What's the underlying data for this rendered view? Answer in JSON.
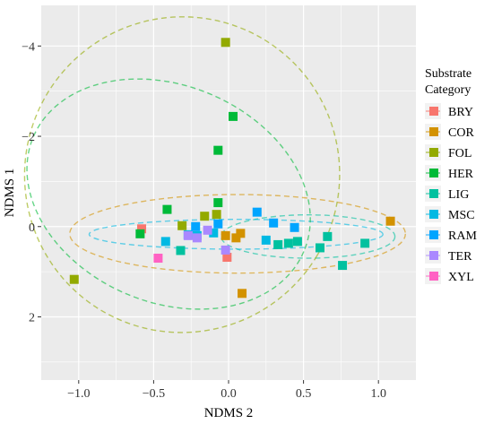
{
  "chart_data": {
    "type": "scatter",
    "xlabel": "NDMS 2",
    "ylabel": "NDMS 1",
    "xlim": [
      -1.25,
      1.25
    ],
    "ylim": [
      3.4,
      -4.9
    ],
    "y_axis_reversed": true,
    "x_ticks": [
      -1.0,
      -0.5,
      0.0,
      0.5,
      1.0
    ],
    "x_tick_labels": [
      "−1.0",
      "−0.5",
      "0.0",
      "0.5",
      "1.0"
    ],
    "y_ticks": [
      -4,
      -2,
      0,
      2
    ],
    "y_tick_labels": [
      "−4",
      "−2",
      "0",
      "2"
    ],
    "grid": true,
    "background": "#ebebeb",
    "legend": {
      "title": "Substrate\nCategory",
      "title_lines": [
        "Substrate",
        "Category"
      ],
      "position": "right"
    },
    "series": [
      {
        "name": "BRY",
        "color": "#F8766D",
        "points": [
          [
            -0.58,
            0.05
          ],
          [
            -0.01,
            0.68
          ]
        ]
      },
      {
        "name": "COR",
        "color": "#D39200",
        "points": [
          [
            -0.02,
            0.2
          ],
          [
            0.05,
            0.25
          ],
          [
            0.08,
            0.15
          ],
          [
            0.09,
            1.48
          ],
          [
            1.08,
            -0.12
          ]
        ]
      },
      {
        "name": "FOL",
        "color": "#93AA00",
        "points": [
          [
            -0.02,
            -4.08
          ],
          [
            -0.31,
            -0.02
          ],
          [
            -0.16,
            -0.23
          ],
          [
            -0.08,
            -0.27
          ],
          [
            -1.03,
            1.17
          ]
        ]
      },
      {
        "name": "HER",
        "color": "#00BA38",
        "points": [
          [
            0.03,
            -2.44
          ],
          [
            -0.07,
            -1.69
          ],
          [
            -0.07,
            -0.53
          ],
          [
            -0.41,
            -0.38
          ],
          [
            -0.59,
            0.16
          ]
        ]
      },
      {
        "name": "LIG",
        "color": "#00C19F",
        "points": [
          [
            0.33,
            0.4
          ],
          [
            0.4,
            0.37
          ],
          [
            0.46,
            0.33
          ],
          [
            0.61,
            0.47
          ],
          [
            0.66,
            0.22
          ],
          [
            0.76,
            0.86
          ],
          [
            0.91,
            0.37
          ],
          [
            -0.32,
            0.53
          ]
        ]
      },
      {
        "name": "MSC",
        "color": "#00B9E3",
        "points": [
          [
            -0.42,
            0.33
          ],
          [
            -0.27,
            0.18
          ],
          [
            -0.21,
            0.2
          ],
          [
            -0.1,
            0.14
          ],
          [
            0.25,
            0.3
          ]
        ]
      },
      {
        "name": "RAM",
        "color": "#00A5FF",
        "points": [
          [
            -0.22,
            0.0
          ],
          [
            -0.07,
            -0.06
          ],
          [
            0.19,
            -0.32
          ],
          [
            0.3,
            -0.08
          ],
          [
            0.44,
            0.02
          ]
        ]
      },
      {
        "name": "TER",
        "color": "#AA88FF",
        "points": [
          [
            -0.27,
            0.2
          ],
          [
            -0.21,
            0.25
          ],
          [
            -0.14,
            0.08
          ],
          [
            -0.02,
            0.52
          ]
        ]
      },
      {
        "name": "XYL",
        "color": "#FF61C3",
        "points": [
          [
            -0.47,
            0.7
          ]
        ]
      }
    ],
    "ellipses": [
      {
        "group": "COR",
        "color": "#D39200",
        "center": [
          0.06,
          0.16
        ],
        "rx": 1.12,
        "ry": 0.87,
        "angle_deg": 0
      },
      {
        "group": "LIG",
        "color": "#00C19F",
        "center": [
          0.53,
          0.22
        ],
        "rx": 0.58,
        "ry": 0.48,
        "angle_deg": 0
      },
      {
        "group": "MSC",
        "color": "#00B9E3",
        "center": [
          0.05,
          0.17
        ],
        "rx": 0.98,
        "ry": 0.33,
        "angle_deg": 0
      },
      {
        "group": "HER",
        "color": "#00BA38",
        "center": [
          -0.4,
          -0.72
        ],
        "rx": 0.98,
        "ry": 2.4,
        "angle_deg": 23
      },
      {
        "group": "FOL",
        "color": "#93AA00",
        "center": [
          -0.31,
          -1.15
        ],
        "rx": 1.05,
        "ry": 3.5,
        "angle_deg": 31
      }
    ]
  }
}
